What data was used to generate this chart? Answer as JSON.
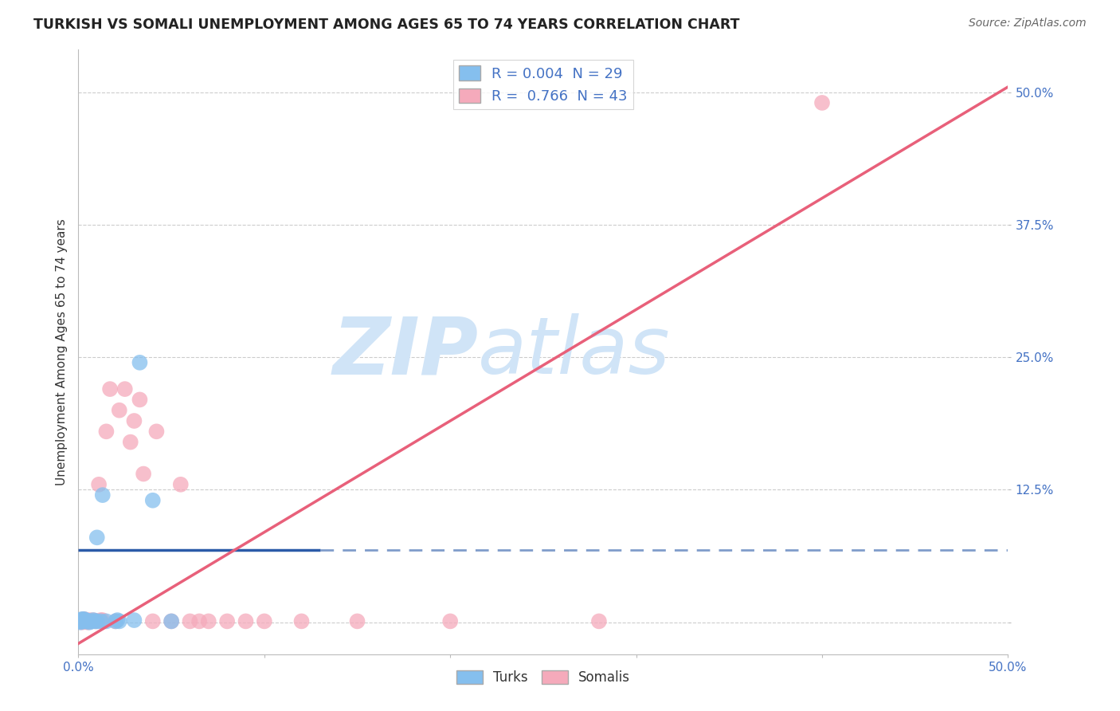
{
  "title": "TURKISH VS SOMALI UNEMPLOYMENT AMONG AGES 65 TO 74 YEARS CORRELATION CHART",
  "source": "Source: ZipAtlas.com",
  "ylabel": "Unemployment Among Ages 65 to 74 years",
  "turks_R": 0.004,
  "turks_N": 29,
  "somalis_R": 0.766,
  "somalis_N": 43,
  "turks_color": "#85BFEE",
  "somalis_color": "#F5AABB",
  "turks_line_color": "#2B5BA8",
  "somalis_line_color": "#E8607A",
  "watermark_color": "#D0E4F7",
  "background_color": "#FFFFFF",
  "grid_color": "#CCCCCC",
  "xlim": [
    0.0,
    0.5
  ],
  "ylim": [
    -0.03,
    0.54
  ],
  "xticks": [
    0.0,
    0.1,
    0.2,
    0.3,
    0.4,
    0.5
  ],
  "yticks": [
    0.0,
    0.125,
    0.25,
    0.375,
    0.5
  ],
  "turks_x": [
    0.0,
    0.0,
    0.001,
    0.001,
    0.002,
    0.002,
    0.002,
    0.003,
    0.003,
    0.003,
    0.004,
    0.004,
    0.005,
    0.006,
    0.007,
    0.008,
    0.009,
    0.01,
    0.01,
    0.012,
    0.013,
    0.015,
    0.02,
    0.021,
    0.022,
    0.03,
    0.033,
    0.04,
    0.05
  ],
  "turks_y": [
    0.001,
    0.002,
    0.001,
    0.0,
    0.001,
    0.002,
    0.003,
    0.001,
    0.002,
    0.003,
    0.001,
    0.002,
    0.001,
    0.0,
    0.001,
    0.002,
    0.001,
    0.001,
    0.08,
    0.001,
    0.12,
    0.001,
    0.001,
    0.002,
    0.001,
    0.002,
    0.245,
    0.115,
    0.001
  ],
  "somalis_x": [
    0.0,
    0.001,
    0.001,
    0.002,
    0.002,
    0.003,
    0.003,
    0.004,
    0.004,
    0.005,
    0.005,
    0.006,
    0.007,
    0.008,
    0.009,
    0.01,
    0.011,
    0.012,
    0.013,
    0.015,
    0.017,
    0.02,
    0.022,
    0.025,
    0.028,
    0.03,
    0.033,
    0.035,
    0.04,
    0.042,
    0.05,
    0.055,
    0.06,
    0.065,
    0.07,
    0.08,
    0.09,
    0.1,
    0.12,
    0.15,
    0.2,
    0.28,
    0.4
  ],
  "somalis_y": [
    0.001,
    0.001,
    0.002,
    0.0,
    0.001,
    0.002,
    0.003,
    0.001,
    0.002,
    0.0,
    0.001,
    0.002,
    0.001,
    0.002,
    0.001,
    0.001,
    0.13,
    0.002,
    0.002,
    0.18,
    0.22,
    0.001,
    0.2,
    0.22,
    0.17,
    0.19,
    0.21,
    0.14,
    0.001,
    0.18,
    0.001,
    0.13,
    0.001,
    0.001,
    0.001,
    0.001,
    0.001,
    0.001,
    0.001,
    0.001,
    0.001,
    0.001,
    0.49
  ],
  "turks_line_y_const": 0.068,
  "turks_line_x_solid_end": 0.13,
  "somalis_line_x0": 0.0,
  "somalis_line_y0": -0.02,
  "somalis_line_x1": 0.5,
  "somalis_line_y1": 0.505
}
